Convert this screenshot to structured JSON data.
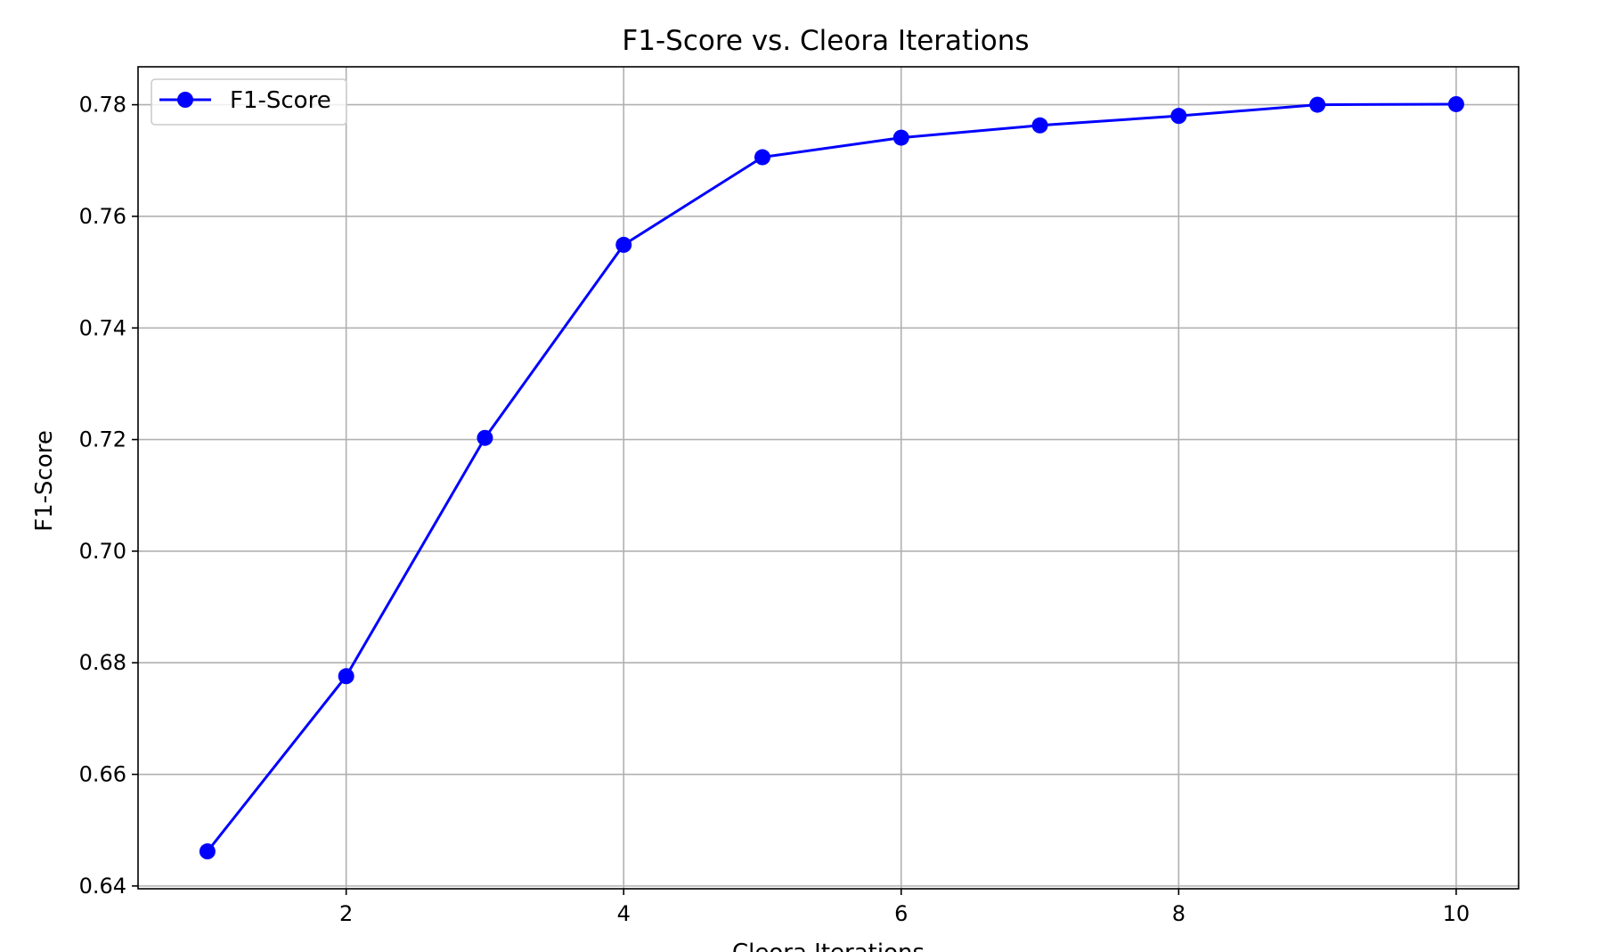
{
  "chart_data": {
    "type": "line",
    "title": "F1-Score vs. Cleora Iterations",
    "xlabel": "Cleora Iterations",
    "ylabel": "F1-Score",
    "xlim": [
      0.5,
      10.45
    ],
    "ylim": [
      0.6395,
      0.7868
    ],
    "xticks": [
      2,
      4,
      6,
      8,
      10
    ],
    "yticks": [
      0.64,
      0.66,
      0.68,
      0.7,
      0.72,
      0.74,
      0.76,
      0.78
    ],
    "ytick_labels": [
      "0.64",
      "0.66",
      "0.68",
      "0.70",
      "0.72",
      "0.74",
      "0.76",
      "0.78"
    ],
    "grid": true,
    "legend_position": "top-left",
    "series": [
      {
        "name": "F1-Score",
        "color": "#0000ff",
        "marker": "circle",
        "x": [
          1,
          2,
          3,
          4,
          5,
          6,
          7,
          8,
          9,
          10
        ],
        "y": [
          0.6462,
          0.6776,
          0.7203,
          0.7549,
          0.7706,
          0.7741,
          0.7763,
          0.778,
          0.78,
          0.7801
        ]
      }
    ]
  }
}
